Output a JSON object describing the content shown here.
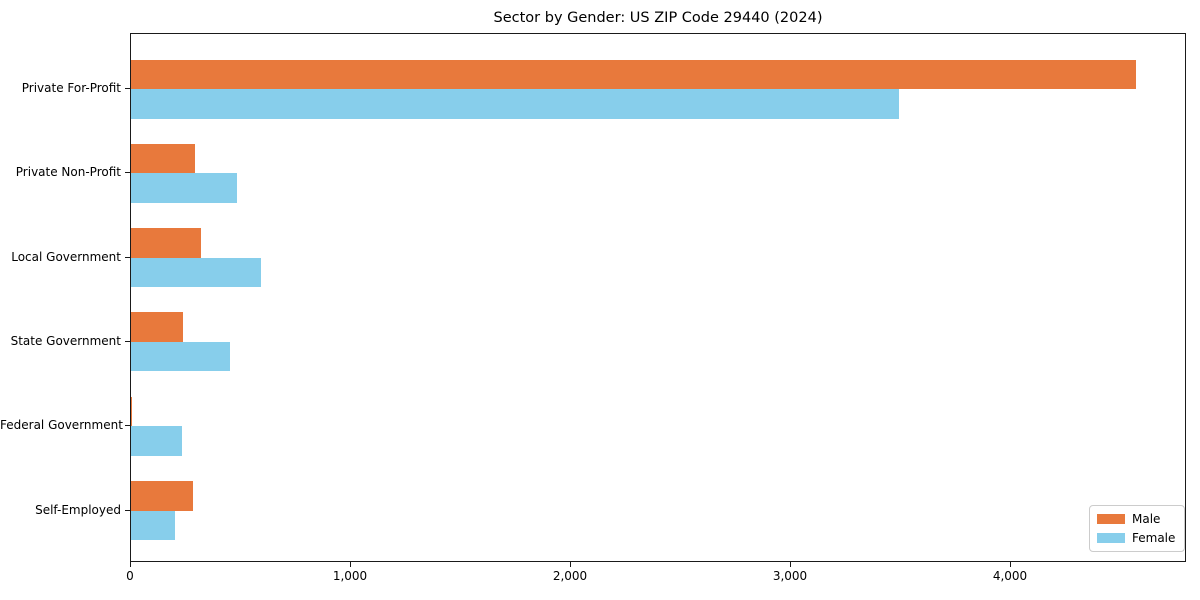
{
  "title": "Sector by Gender: US ZIP Code 29440 (2024)",
  "chart_data": {
    "type": "bar",
    "orientation": "horizontal",
    "title": "Sector by Gender: US ZIP Code 29440 (2024)",
    "categories": [
      "Private For-Profit",
      "Private Non-Profit",
      "Local Government",
      "State Government",
      "Federal Government",
      "Self-Employed"
    ],
    "series": [
      {
        "name": "Male",
        "color": "#E8793C",
        "values": [
          4570,
          290,
          320,
          235,
          4,
          280
        ]
      },
      {
        "name": "Female",
        "color": "#87CEEB",
        "values": [
          3490,
          480,
          590,
          450,
          230,
          200
        ]
      }
    ],
    "xlabel": "",
    "ylabel": "",
    "xlim": [
      0,
      4800
    ],
    "x_ticks": [
      0,
      1000,
      2000,
      3000,
      4000
    ],
    "x_tick_labels": [
      "0",
      "1,000",
      "2,000",
      "3,000",
      "4,000"
    ],
    "grid": false,
    "legend_position": "lower right"
  }
}
